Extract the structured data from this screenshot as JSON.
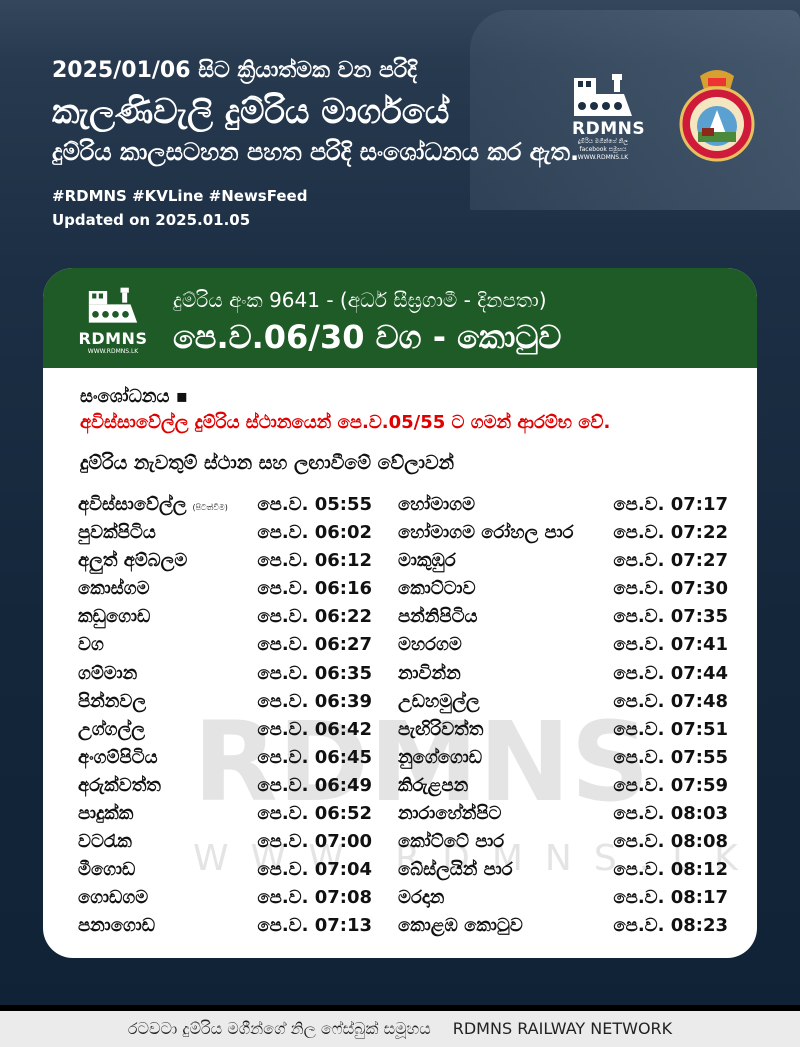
{
  "header": {
    "line1": "2025/01/06 සිට ක්‍රියාත්මක වන පරිදි",
    "line2": "කැලණිවැලි දුම්රිය මාර්ගයේ",
    "line3": "දුම්රිය කාලසටහන පහත පරිදි සංශෝධනය කර ඇත.",
    "hashtags": "#RDMNS  #KVLine #NewsFeed",
    "updated": "Updated on 2025.01.05",
    "logo_text": "RDMNS",
    "logo_sub": "දුම්රිය මගීන්ගේ නිල facebook සමූහය",
    "logo_url": "WWW.RDMNS.LK"
  },
  "card": {
    "train_no": "දුම්රිය අංක 9641 - (අර්ධ සීඝ්‍රගාමී - දිනපතා)",
    "route": "පෙ.ව.06/30 වග - කොටුව",
    "revision_label": "සංශෝධනය ▪",
    "revision_text": "අවිස්සාවේල්ල දුම්රිය ස්ථානයෙන් පෙ.ව.05/55 ට ගමන් ආරම්භ වේ.",
    "section_title": "දුම්රිය නැවතුම් ස්ථාන සහ ලඟාවීමේ වේලාවන්",
    "watermark_text": "RDMNS",
    "watermark_url": "WWW.RDMNS.LK",
    "stops": [
      {
        "left_station": "අවිස්සාවේල්ල",
        "left_note": "(පිටත්වීම)",
        "left_time": "පෙ.ව. 05:55",
        "right_station": "හෝමාගම",
        "right_time": "පෙ.ව. 07:17"
      },
      {
        "left_station": "පුවක්පිටිය",
        "left_note": "",
        "left_time": "පෙ.ව. 06:02",
        "right_station": "හෝමාගම රෝහල පාර",
        "right_time": "පෙ.ව. 07:22"
      },
      {
        "left_station": "අලුත් අම්බලම",
        "left_note": "",
        "left_time": "පෙ.ව. 06:12",
        "right_station": "මාකුඹුර",
        "right_time": "පෙ.ව. 07:27"
      },
      {
        "left_station": "කොස්ගම",
        "left_note": "",
        "left_time": "පෙ.ව. 06:16",
        "right_station": "කොට්ටාව",
        "right_time": "පෙ.ව. 07:30"
      },
      {
        "left_station": "කඩුගොඩ",
        "left_note": "",
        "left_time": "පෙ.ව. 06:22",
        "right_station": "පන්නිපිටිය",
        "right_time": "පෙ.ව. 07:35"
      },
      {
        "left_station": "වග",
        "left_note": "",
        "left_time": "පෙ.ව. 06:27",
        "right_station": "මහරගම",
        "right_time": "පෙ.ව. 07:41"
      },
      {
        "left_station": "ගම්මාන",
        "left_note": "",
        "left_time": "පෙ.ව. 06:35",
        "right_station": "නාවින්න",
        "right_time": "පෙ.ව. 07:44"
      },
      {
        "left_station": "පින්නවල",
        "left_note": "",
        "left_time": "පෙ.ව. 06:39",
        "right_station": "උඩහමුල්ල",
        "right_time": "පෙ.ව. 07:48"
      },
      {
        "left_station": "උග්ගල්ල",
        "left_note": "",
        "left_time": "පෙ.ව. 06:42",
        "right_station": "පැඟිරිවත්ත",
        "right_time": "පෙ.ව. 07:51"
      },
      {
        "left_station": "අංගම්පිටිය",
        "left_note": "",
        "left_time": "පෙ.ව. 06:45",
        "right_station": "නුගේගොඩ",
        "right_time": "පෙ.ව. 07:55"
      },
      {
        "left_station": "අරුක්වත්ත",
        "left_note": "",
        "left_time": "පෙ.ව. 06:49",
        "right_station": "කිරුළපන",
        "right_time": "පෙ.ව. 07:59"
      },
      {
        "left_station": "පාදුක්ක",
        "left_note": "",
        "left_time": "පෙ.ව. 06:52",
        "right_station": "නාරාහේන්පිට",
        "right_time": "පෙ.ව. 08:03"
      },
      {
        "left_station": "වටරැක",
        "left_note": "",
        "left_time": "පෙ.ව. 07:00",
        "right_station": "කෝට්ටේ පාර",
        "right_time": "පෙ.ව. 08:08"
      },
      {
        "left_station": "මීගොඩ",
        "left_note": "",
        "left_time": "පෙ.ව. 07:04",
        "right_station": "බේස්ලයින් පාර",
        "right_time": "පෙ.ව. 08:12"
      },
      {
        "left_station": "ගොඩගම",
        "left_note": "",
        "left_time": "පෙ.ව. 07:08",
        "right_station": "මරදාන",
        "right_time": "පෙ.ව. 08:17"
      },
      {
        "left_station": "පනාගොඩ",
        "left_note": "",
        "left_time": "පෙ.ව. 07:13",
        "right_station": "කොළඹ කොටුව",
        "right_time": "පෙ.ව. 08:23"
      }
    ]
  },
  "footer": {
    "group_name": "රටවටා දුම්රිය මගීන්ගේ නිල ෆේස්බුක් සමූහය",
    "network": "RDMNS RAILWAY NETWORK"
  },
  "colors": {
    "header_green": "#1f5b27",
    "revision_red": "#e00000",
    "background_navy": "#14263a"
  }
}
